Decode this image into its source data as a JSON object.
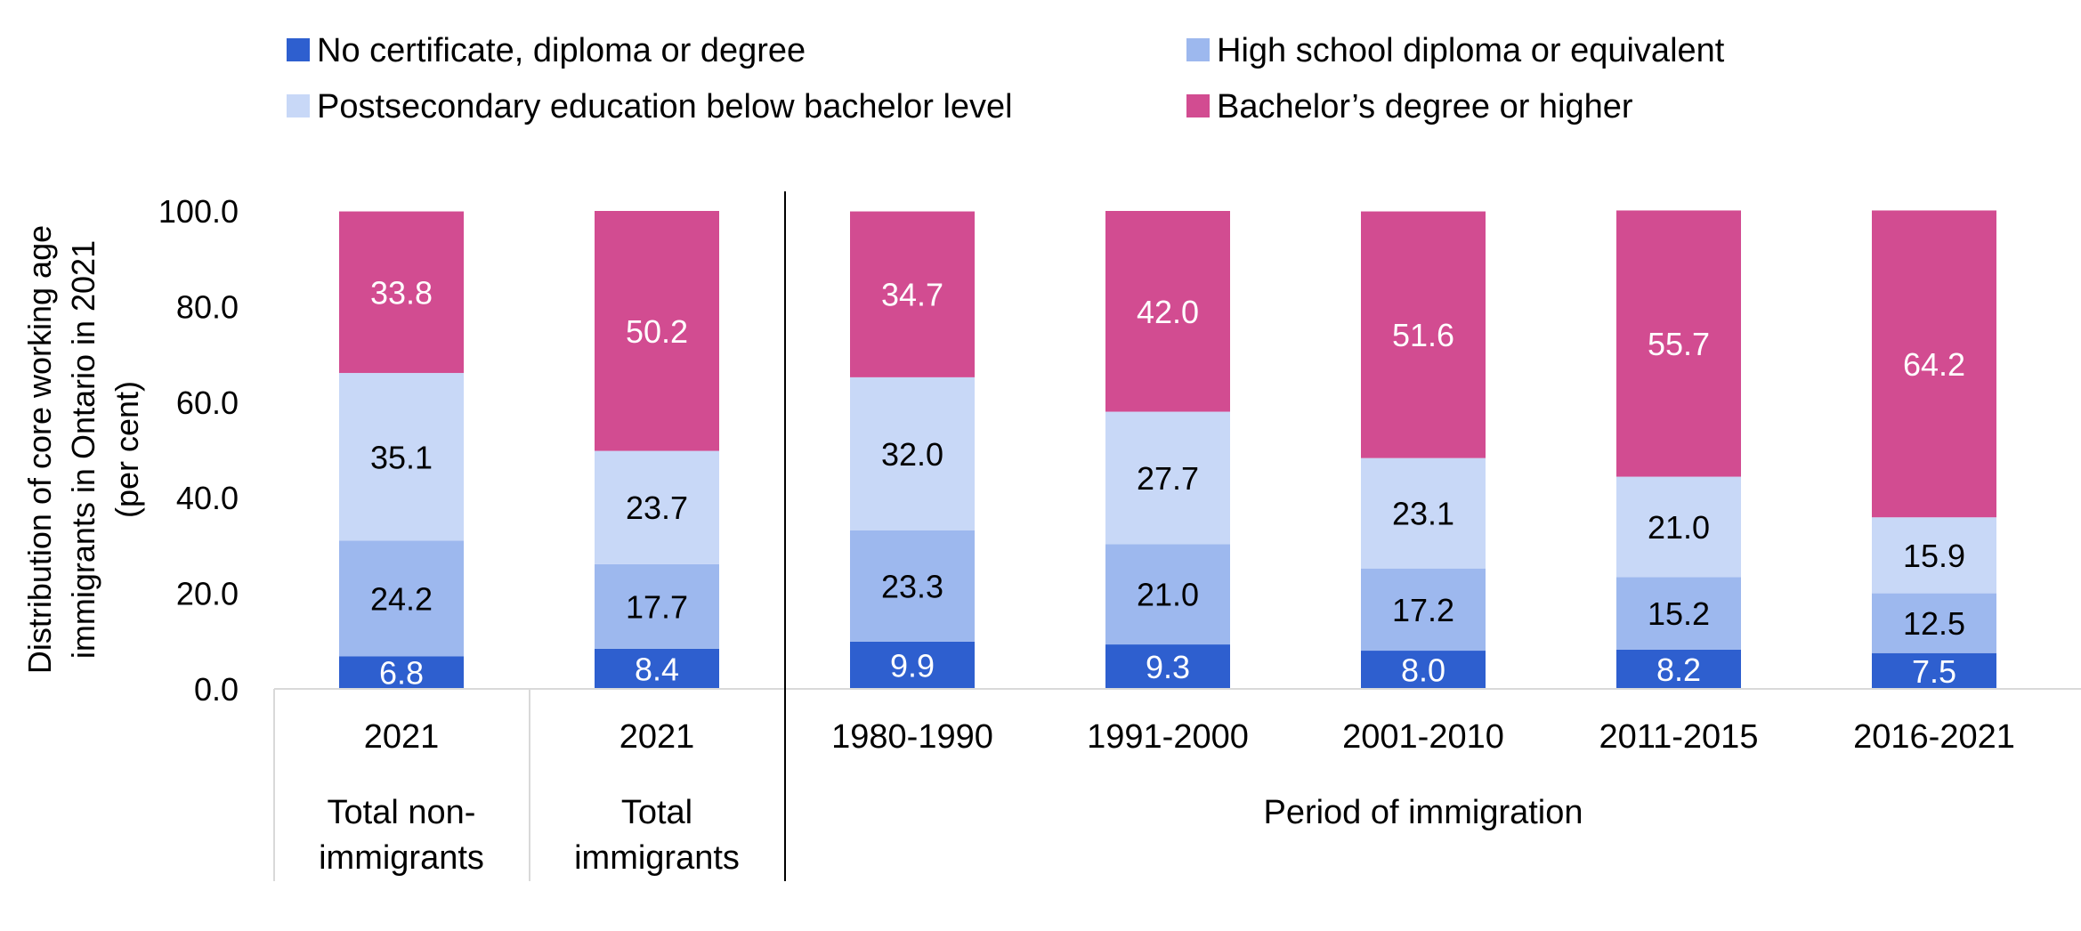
{
  "chart_data": {
    "type": "bar",
    "stacked": true,
    "ylabel_lines": [
      "Distribution of core working age",
      "immigrants in Ontario in 2021",
      "(per cent)"
    ],
    "ylim": [
      0,
      100
    ],
    "yticks": [
      "0.0",
      "20.0",
      "40.0",
      "60.0",
      "80.0",
      "100.0"
    ],
    "grid": false,
    "legend_position": "top",
    "categories": [
      "2021",
      "2021",
      "1980-1990",
      "1991-2000",
      "2001-2010",
      "2011-2015",
      "2016-2021"
    ],
    "group_labels": [
      {
        "lines": [
          "Total non-",
          "immigrants"
        ]
      },
      {
        "lines": [
          "Total",
          "immigrants"
        ]
      },
      {
        "lines": [
          "Period of immigration"
        ]
      }
    ],
    "series": [
      {
        "name": "No certificate, diploma or degree",
        "color": "#2E5FCF",
        "label_color": "#ffffff",
        "values": [
          6.8,
          8.4,
          9.9,
          9.3,
          8.0,
          8.2,
          7.5
        ],
        "labels": [
          "6.8",
          "8.4",
          "9.9",
          "9.3",
          "8.0",
          "8.2",
          "7.5"
        ]
      },
      {
        "name": "High school diploma or equivalent",
        "color": "#9DB8EE",
        "label_color": "#000000",
        "values": [
          24.2,
          17.7,
          23.3,
          21.0,
          17.2,
          15.2,
          12.5
        ],
        "labels": [
          "24.2",
          "17.7",
          "23.3",
          "21.0",
          "17.2",
          "15.2",
          "12.5"
        ]
      },
      {
        "name": "Postsecondary education below bachelor level",
        "color": "#C8D8F7",
        "label_color": "#000000",
        "values": [
          35.1,
          23.7,
          32.0,
          27.7,
          23.1,
          21.0,
          15.9
        ],
        "labels": [
          "35.1",
          "23.7",
          "32.0",
          "27.7",
          "23.1",
          "21.0",
          "15.9"
        ]
      },
      {
        "name": "Bachelor’s degree or higher",
        "color": "#D24C91",
        "label_color": "#ffffff",
        "values": [
          33.8,
          50.2,
          34.7,
          42.0,
          51.6,
          55.7,
          64.2
        ],
        "labels": [
          "33.8",
          "50.2",
          "34.7",
          "42.0",
          "51.6",
          "55.7",
          "64.2"
        ]
      }
    ]
  }
}
